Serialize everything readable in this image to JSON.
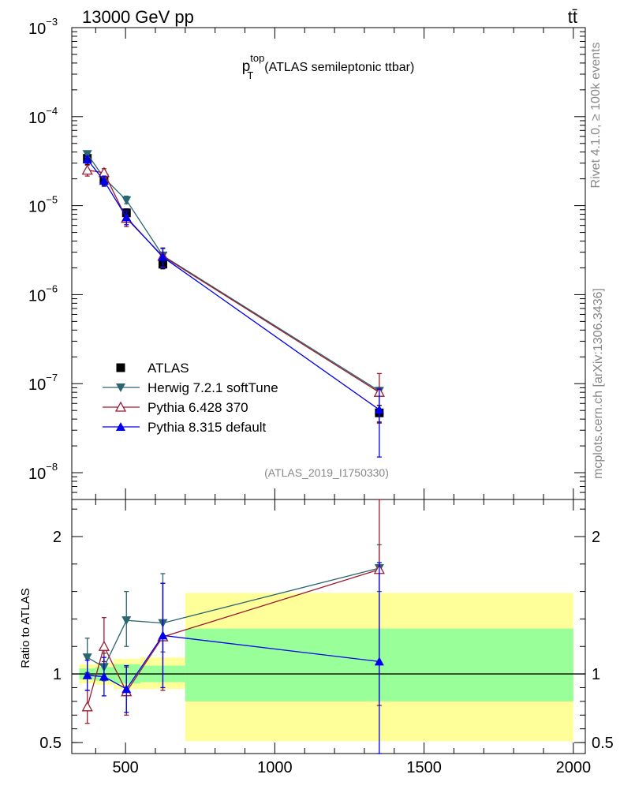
{
  "header": {
    "left": "13000 GeV pp",
    "right": "tt̄"
  },
  "side_labels": {
    "rivet": "Rivet 4.1.0, ≥ 100k events",
    "mcplots": "mcplots.cern.ch [arXiv:1306.3436]"
  },
  "analysis_id": "(ATLAS_2019_I1750330)",
  "colors": {
    "atlas": "#000000",
    "herwig": "#2a6570",
    "pythia6": "#9b1b30",
    "pythia8": "#0000ee",
    "band_outer": "#ffff99",
    "band_inner": "#99ff99"
  },
  "chart_data": [
    {
      "type": "line",
      "title": "(ATLAS semileptonic ttbar)",
      "title_var": "p",
      "title_sup": "top",
      "title_sub": "T",
      "yscale": "log",
      "xlim": [
        320,
        2040
      ],
      "ylim": [
        5e-09,
        0.001
      ],
      "y_ticks": [
        {
          "v": 0.001,
          "m": "10",
          "e": "−3"
        },
        {
          "v": 0.0001,
          "m": "10",
          "e": "−4"
        },
        {
          "v": 1e-05,
          "m": "10",
          "e": "−5"
        },
        {
          "v": 1e-06,
          "m": "10",
          "e": "−6"
        },
        {
          "v": 1e-07,
          "m": "10",
          "e": "−7"
        },
        {
          "v": 1e-08,
          "m": "10",
          "e": "−8"
        }
      ],
      "legend_position": "left-middle",
      "series": [
        {
          "name": "ATLAS",
          "marker": "square",
          "x": [
            372,
            428,
            503,
            625,
            1350
          ],
          "y": [
            3.4e-05,
            1.95e-05,
            8.3e-06,
            2.2e-06,
            4.7e-08
          ],
          "err_lo": [
            2.9e-05,
            1.7e-05,
            7.4e-06,
            1.95e-06,
            3.7e-08
          ],
          "err_hi": [
            3.9e-05,
            2.2e-05,
            9.2e-06,
            2.45e-06,
            5.7e-08
          ]
        },
        {
          "name": "Herwig 7.2.1 softTune",
          "marker": "triangle-down",
          "x": [
            372,
            428,
            503,
            625,
            1350
          ],
          "y": [
            3.8e-05,
            2.05e-05,
            1.15e-05,
            2.75e-06,
            8.3e-08
          ],
          "err_lo": [
            3.5e-05,
            1.85e-05,
            1.05e-05,
            2.5e-06,
            7.5e-08
          ],
          "err_hi": [
            4.1e-05,
            2.25e-05,
            1.28e-05,
            3e-06,
            9.1e-08
          ]
        },
        {
          "name": "Pythia 6.428 370",
          "marker": "triangle-open",
          "x": [
            372,
            428,
            503,
            625,
            1350
          ],
          "y": [
            2.5e-05,
            2.35e-05,
            7.2e-06,
            2.7e-06,
            8e-08
          ],
          "err_lo": [
            2.15e-05,
            2.1e-05,
            5.8e-06,
            2.05e-06,
            3.6e-08
          ],
          "err_hi": [
            2.85e-05,
            2.6e-05,
            8.7e-06,
            3.35e-06,
            1.3e-07
          ]
        },
        {
          "name": "Pythia 8.315 default",
          "marker": "triangle-up",
          "x": [
            372,
            428,
            503,
            625,
            1350
          ],
          "y": [
            3.3e-05,
            1.9e-05,
            7.4e-06,
            2.65e-06,
            5.1e-08
          ],
          "err_lo": [
            3e-05,
            1.65e-05,
            6.1e-06,
            2e-06,
            1.5e-08
          ],
          "err_hi": [
            3.6e-05,
            2.15e-05,
            8.7e-06,
            3.3e-06,
            8.7e-08
          ]
        }
      ]
    },
    {
      "type": "line",
      "ylabel": "Ratio to ATLAS",
      "xlim": [
        320,
        2040
      ],
      "ylim": [
        0.42,
        2.27
      ],
      "x_ticks": [
        500,
        1000,
        1500,
        2000
      ],
      "y_ticks": [
        0.5,
        1,
        2
      ],
      "reference": 1,
      "bands": [
        {
          "x0": 345,
          "x1": 400,
          "outer": [
            0.93,
            1.07
          ],
          "inner": [
            0.96,
            1.04
          ]
        },
        {
          "x0": 400,
          "x1": 460,
          "outer": [
            0.92,
            1.08
          ],
          "inner": [
            0.95,
            1.05
          ]
        },
        {
          "x0": 460,
          "x1": 550,
          "outer": [
            0.89,
            1.11
          ],
          "inner": [
            0.93,
            1.07
          ]
        },
        {
          "x0": 550,
          "x1": 700,
          "outer": [
            0.89,
            1.12
          ],
          "inner": [
            0.94,
            1.06
          ]
        },
        {
          "x0": 700,
          "x1": 2000,
          "outer": [
            0.51,
            1.59
          ],
          "inner": [
            0.8,
            1.33
          ]
        }
      ],
      "series": [
        {
          "name": "Herwig 7.2.1 softTune",
          "x": [
            372,
            428,
            503,
            625,
            1350
          ],
          "y": [
            1.12,
            1.05,
            1.39,
            1.37,
            1.77
          ],
          "err_lo": [
            1.01,
            0.95,
            1.2,
            1.16,
            1.6
          ],
          "err_hi": [
            1.26,
            1.15,
            1.6,
            1.73,
            1.94
          ]
        },
        {
          "name": "Pythia 6.428 370",
          "x": [
            372,
            428,
            503,
            625,
            1350
          ],
          "y": [
            0.76,
            1.2,
            0.87,
            1.27,
            1.76
          ],
          "err_lo": [
            0.64,
            1.09,
            0.7,
            0.88,
            0.77
          ],
          "err_hi": [
            0.88,
            1.41,
            1.05,
            1.66,
            2.27
          ]
        },
        {
          "name": "Pythia 8.315 default",
          "x": [
            372,
            428,
            503,
            625,
            1350
          ],
          "y": [
            0.99,
            0.98,
            0.89,
            1.28,
            1.09
          ],
          "err_lo": [
            0.88,
            0.84,
            0.72,
            0.9,
            0.42
          ],
          "err_hi": [
            1.1,
            1.12,
            1.06,
            1.66,
            1.81
          ]
        }
      ]
    }
  ]
}
